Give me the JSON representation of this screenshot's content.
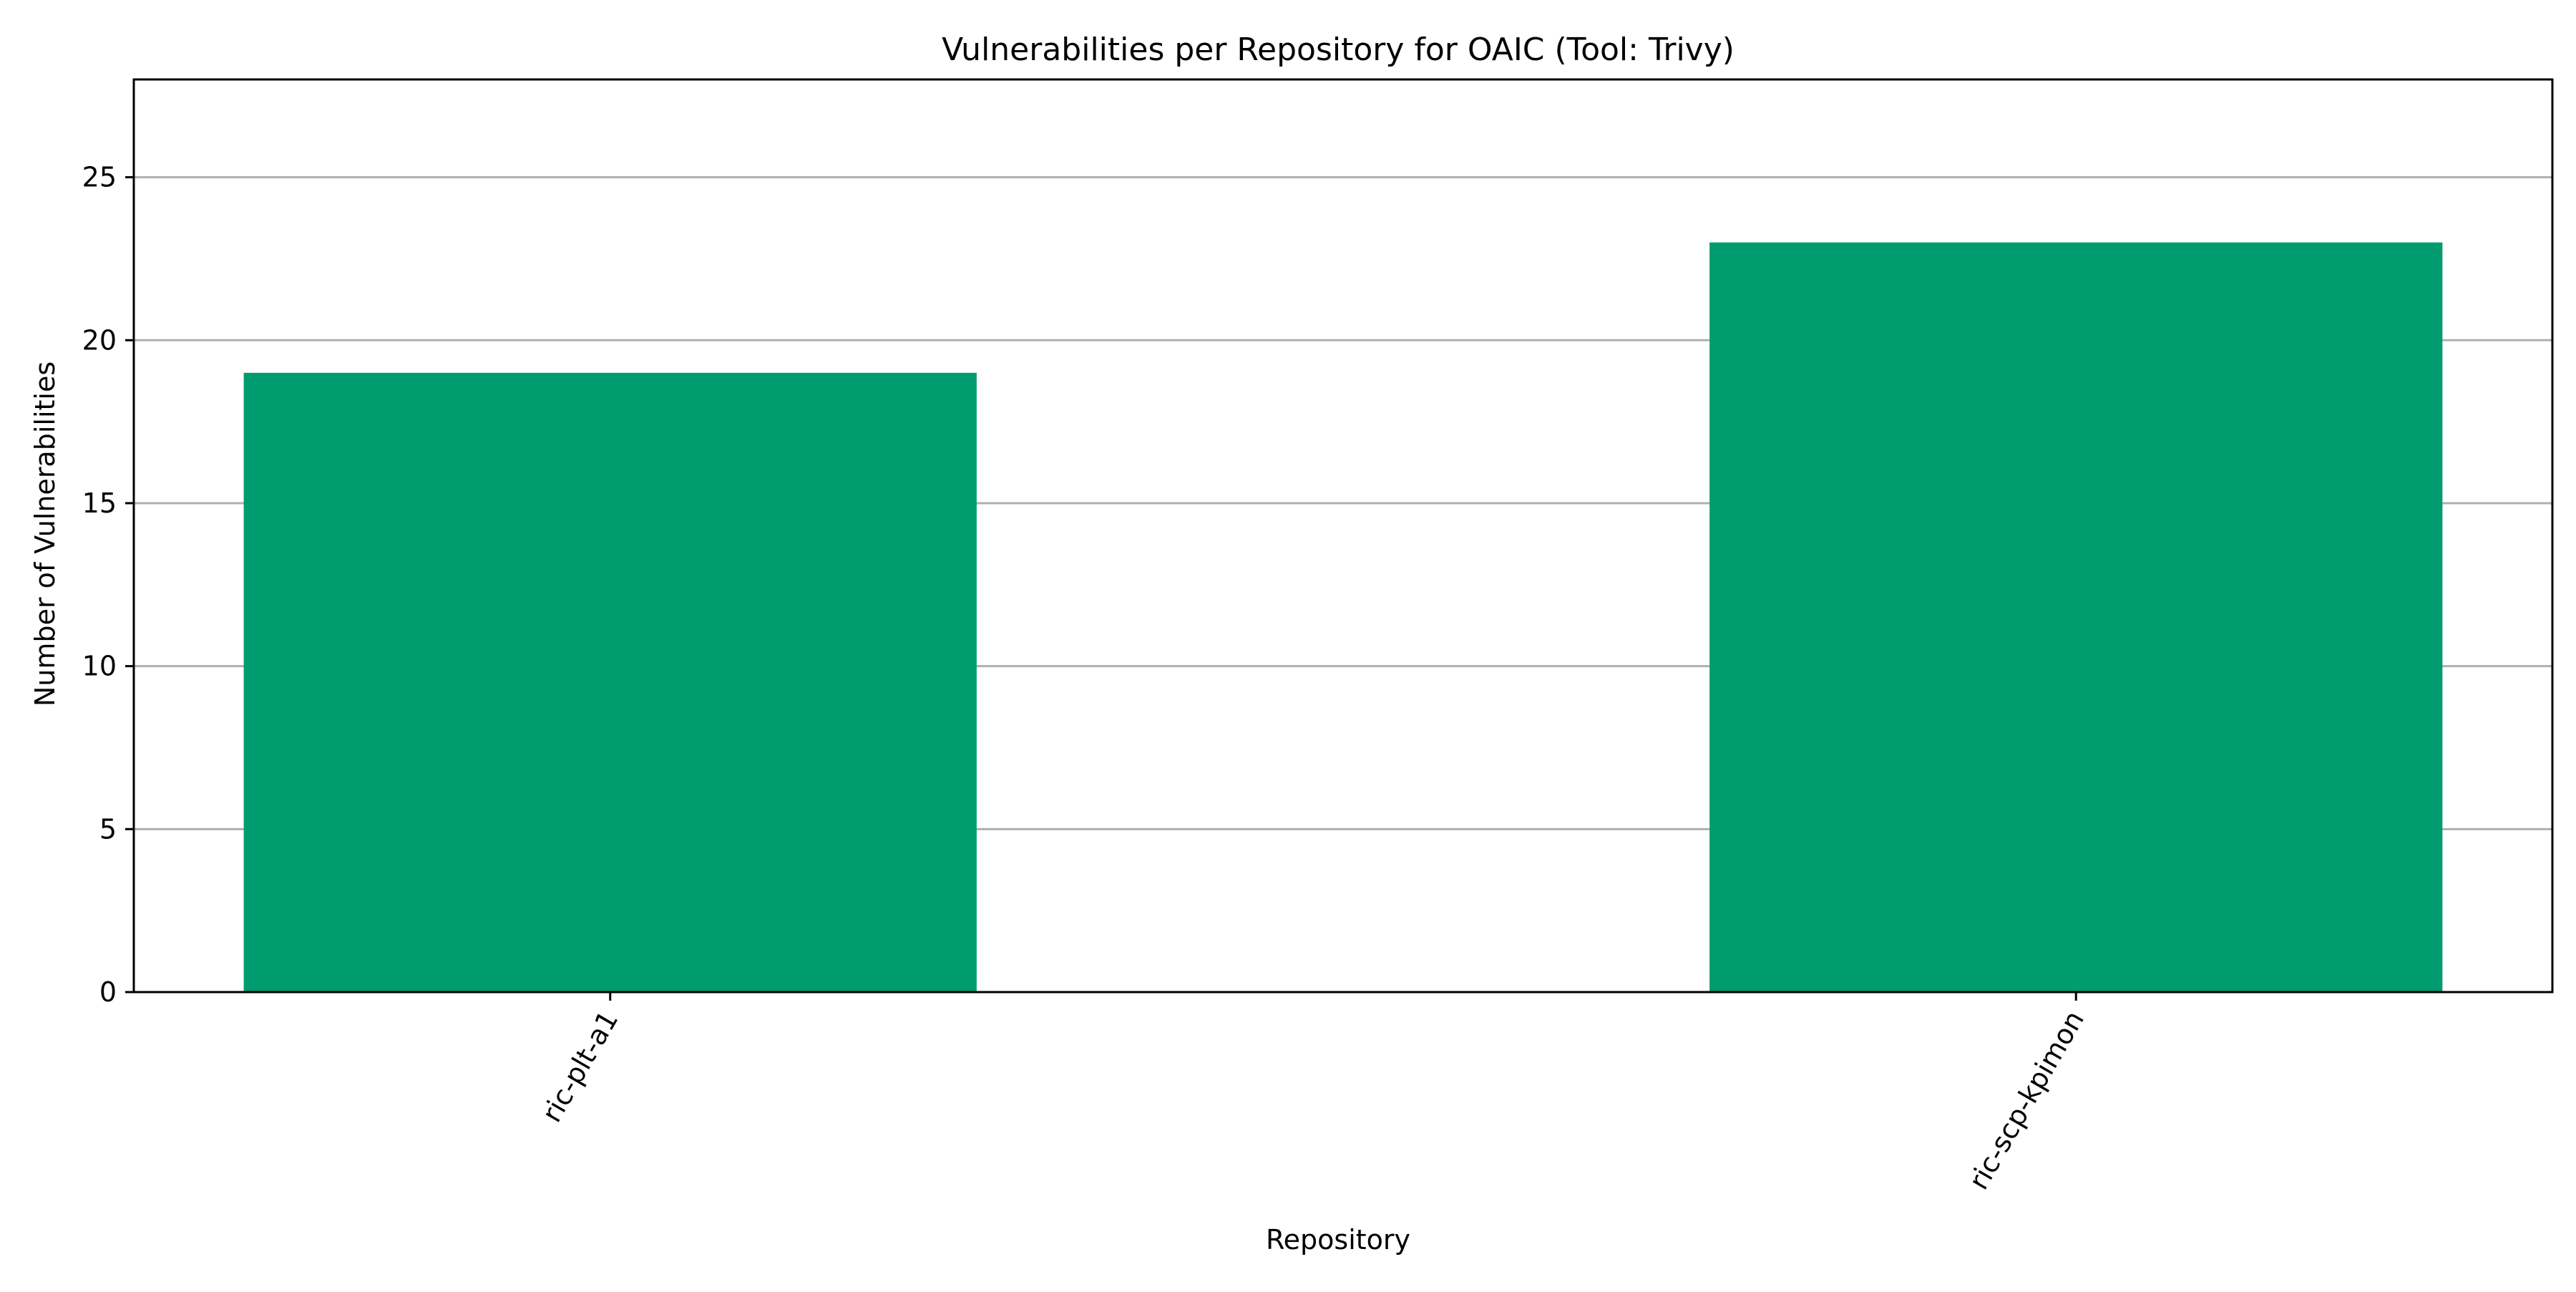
{
  "chart_data": {
    "type": "bar",
    "title": "Vulnerabilities per Repository for OAIC (Tool: Trivy)",
    "xlabel": "Repository",
    "ylabel": "Number of Vulnerabilities",
    "categories": [
      "ric-plt-a1",
      "ric-scp-kpimon"
    ],
    "values": [
      19,
      23
    ],
    "ylim": [
      0,
      28
    ],
    "yticks": [
      0,
      5,
      10,
      15,
      20,
      25
    ],
    "grid": "y",
    "legend": "none",
    "bar_color": "#009c70",
    "grid_color": "#b0b0b0",
    "x_tick_rotation": -60
  }
}
